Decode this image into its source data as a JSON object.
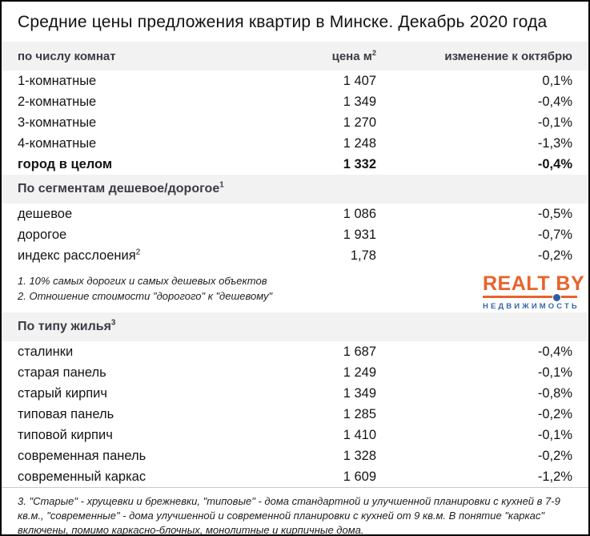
{
  "chart_data": {
    "type": "table",
    "title": "Средние цены предложения квартир в Минске. Декабрь 2020 года",
    "columns": {
      "price_label": "цена м",
      "price_sup": "2",
      "change_label": "изменение к октябрю"
    },
    "by_rooms": {
      "header": "по числу комнат",
      "rows": [
        {
          "label": "1-комнатные",
          "price": "1 407",
          "change": "0,1%"
        },
        {
          "label": "2-комнатные",
          "price": "1 349",
          "change": "-0,4%"
        },
        {
          "label": "3-комнатные",
          "price": "1 270",
          "change": "-0,1%"
        },
        {
          "label": "4-комнатные",
          "price": "1 248",
          "change": "-1,3%"
        }
      ],
      "total": {
        "label": "город в целом",
        "price": "1 332",
        "change": "-0,4%"
      }
    },
    "by_segment": {
      "header": "По сегментам дешевое/дорогое",
      "header_sup": "1",
      "rows": [
        {
          "label": "дешевое",
          "price": "1 086",
          "change": "-0,5%"
        },
        {
          "label": "дорогое",
          "price": "1 931",
          "change": "-0,7%"
        },
        {
          "label": "индекс расслоения",
          "label_sup": "2",
          "price": "1,78",
          "change": "-0,2%"
        }
      ],
      "footnote_1": "1. 10% самых дорогих и самых дешевых объектов",
      "footnote_2": "2. Отношение стоимости \"дорогого\" к \"дешевому\""
    },
    "by_type": {
      "header": "По типу жилья",
      "header_sup": "3",
      "rows": [
        {
          "label": "сталинки",
          "price": "1 687",
          "change": "-0,4%"
        },
        {
          "label": "старая панель",
          "price": "1 249",
          "change": "-0,1%"
        },
        {
          "label": "старый кирпич",
          "price": "1 349",
          "change": "-0,8%"
        },
        {
          "label": "типовая панель",
          "price": "1 285",
          "change": "-0,2%"
        },
        {
          "label": "типовой кирпич",
          "price": "1 410",
          "change": "-0,1%"
        },
        {
          "label": "современная панель",
          "price": "1 328",
          "change": "-0,2%"
        },
        {
          "label": "современный каркас",
          "price": "1 609",
          "change": "-1,2%"
        }
      ],
      "footnote": "3. \"Старые\" - хрущевки и брежневки, \"типовые\" - дома стандартной и улучшенной планировки с кухней в 7-9 кв.м., \"современные\" - дома улучшенной и современной планировки с кухней от 9 кв.м. В понятие \"каркас\" включены, помимо каркасно-блочных, монолитные и кирпичные дома."
    }
  },
  "logo": {
    "name": "REALT BY",
    "tagline": "НЕДВИЖИМОСТЬ"
  },
  "colors": {
    "logo_orange": "#e8632c",
    "logo_blue": "#3568a9",
    "band_bg": "#f2f2f2"
  }
}
